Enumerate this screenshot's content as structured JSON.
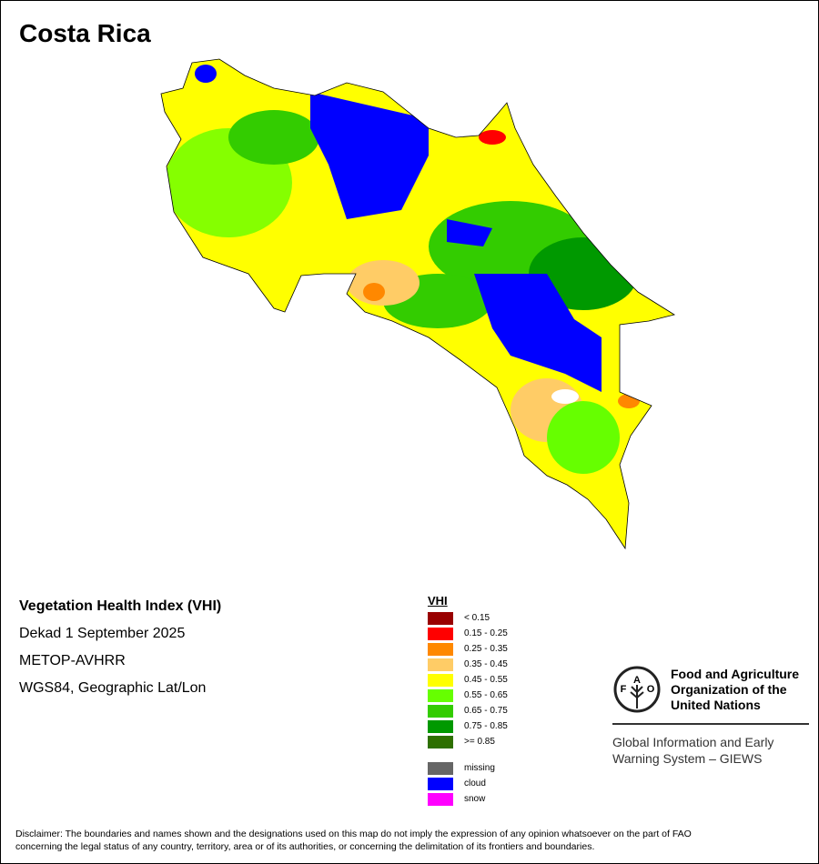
{
  "title": "Costa Rica",
  "info": {
    "index_name": "Vegetation Health Index (VHI)",
    "period": "Dekad 1 September 2025",
    "sensor": "METOP-AVHRR",
    "projection": "WGS84, Geographic Lat/Lon"
  },
  "legend": {
    "title": "VHI",
    "classes": [
      {
        "label": "< 0.15",
        "color": "#990000"
      },
      {
        "label": "0.15 - 0.25",
        "color": "#ff0000"
      },
      {
        "label": "0.25 - 0.35",
        "color": "#ff8800"
      },
      {
        "label": "0.35 - 0.45",
        "color": "#ffcc66"
      },
      {
        "label": "0.45 - 0.55",
        "color": "#ffff00"
      },
      {
        "label": "0.55 - 0.65",
        "color": "#66ff00"
      },
      {
        "label": "0.65 - 0.75",
        "color": "#33cc00"
      },
      {
        "label": "0.75 - 0.85",
        "color": "#009900"
      },
      {
        "label": ">= 0.85",
        "color": "#2e7000"
      }
    ],
    "other": [
      {
        "label": "missing",
        "color": "#666666"
      },
      {
        "label": "cloud",
        "color": "#0000ff"
      },
      {
        "label": "snow",
        "color": "#ff00ff"
      }
    ]
  },
  "logo": {
    "org_name_line1": "Food and Agriculture",
    "org_name_line2": "Organization of the",
    "org_name_line3": "United Nations",
    "emblem_text": "FAO FIAT PANIS",
    "system_line1": "Global Information and Early",
    "system_line2": "Warning System – GIEWS"
  },
  "disclaimer_line1": "Disclaimer: The boundaries and names shown and the designations used on this map do not imply the expression of any opinion whatsoever on the part of FAO",
  "disclaimer_line2": "concerning the legal status of any country, territory, area or of its authorities, or concerning the delimitation of its frontiers and boundaries."
}
